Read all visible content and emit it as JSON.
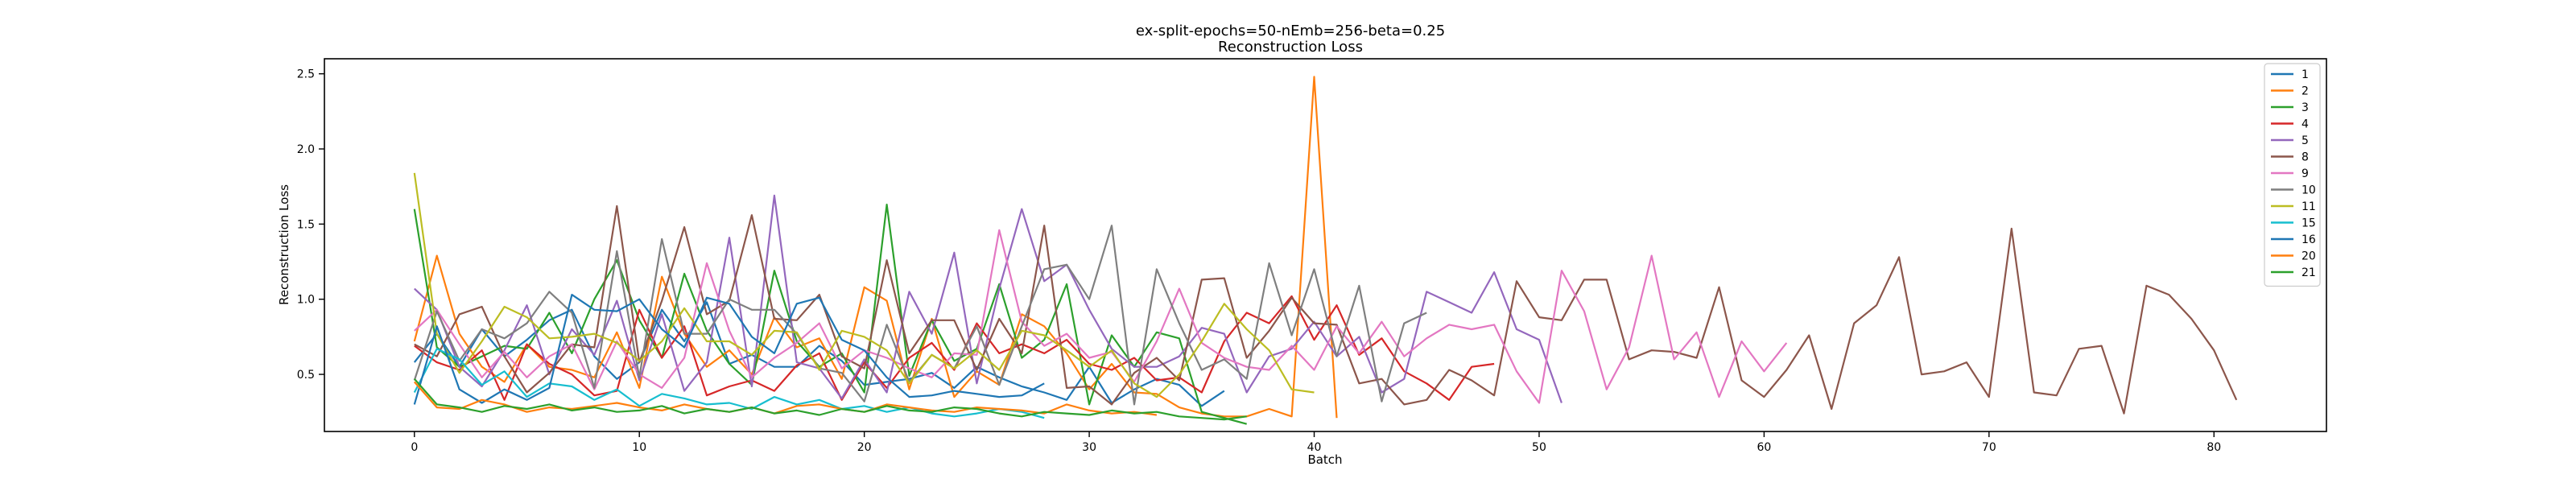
{
  "chart_data": {
    "type": "line",
    "title": "ex-split-epochs=50-nEmb=256-beta=0.25",
    "subtitle": "Reconstruction Loss",
    "xlabel": "Batch",
    "ylabel": "Reconstruction Loss",
    "xlim": [
      -4,
      85
    ],
    "ylim": [
      0.12,
      2.6
    ],
    "xticks": [
      "0",
      "10",
      "20",
      "30",
      "40",
      "50",
      "60",
      "70",
      "80"
    ],
    "yticks": [
      "0.5",
      "1.0",
      "1.5",
      "2.0",
      "2.5"
    ],
    "grid": false,
    "legend_position": "top-right",
    "series": [
      {
        "name": "1",
        "color": "#1f77b4",
        "values": [
          0.58,
          0.77,
          0.55,
          0.8,
          0.62,
          0.73,
          0.86,
          0.93,
          0.62,
          0.47,
          0.58,
          0.93,
          0.72,
          0.98,
          0.57,
          0.63,
          0.55,
          0.55,
          0.69,
          0.59,
          0.43,
          0.45,
          0.47,
          0.51,
          0.41,
          0.55,
          0.48,
          0.42,
          0.38,
          0.33,
          0.55,
          0.31,
          0.4,
          0.47,
          0.43,
          0.29,
          0.39
        ]
      },
      {
        "name": "2",
        "color": "#ff7f0e",
        "values": [
          0.72,
          1.29,
          0.77,
          0.55,
          0.45,
          0.7,
          0.55,
          0.53,
          0.48,
          0.78,
          0.41,
          1.15,
          0.77,
          0.55,
          0.66,
          0.5,
          0.88,
          0.68,
          0.74,
          0.47,
          1.08,
          0.99,
          0.4,
          0.87,
          0.35,
          0.52,
          0.43,
          0.9,
          0.82,
          0.64,
          0.4,
          0.57,
          0.38,
          0.37,
          0.28,
          0.24,
          0.22,
          0.22,
          0.27,
          0.22,
          2.48,
          0.21
        ]
      },
      {
        "name": "3",
        "color": "#2ca02c",
        "values": [
          1.6,
          0.68,
          0.55,
          0.62,
          0.69,
          0.67,
          0.91,
          0.64,
          1.0,
          1.26,
          0.86,
          0.61,
          1.17,
          0.79,
          0.57,
          0.43,
          1.19,
          0.72,
          0.55,
          0.64,
          0.38,
          1.63,
          0.49,
          0.86,
          0.59,
          0.67,
          1.1,
          0.61,
          0.73,
          1.1,
          0.3,
          0.76,
          0.55,
          0.78,
          0.74,
          0.25,
          0.21,
          0.17
        ]
      },
      {
        "name": "4",
        "color": "#d62728",
        "values": [
          0.69,
          0.58,
          0.53,
          0.66,
          0.33,
          0.7,
          0.57,
          0.5,
          0.36,
          0.39,
          0.93,
          0.61,
          0.82,
          0.36,
          0.42,
          0.46,
          0.39,
          0.56,
          0.64,
          0.33,
          0.58,
          0.41,
          0.61,
          0.71,
          0.53,
          0.84,
          0.64,
          0.7,
          0.64,
          0.73,
          0.57,
          0.53,
          0.61,
          0.46,
          0.48,
          0.38,
          0.72,
          0.91,
          0.84,
          1.02,
          0.73,
          0.96,
          0.63,
          0.74,
          0.52,
          0.44,
          0.33,
          0.55,
          0.57
        ]
      },
      {
        "name": "5",
        "color": "#9467bd",
        "values": [
          1.07,
          0.93,
          0.55,
          0.42,
          0.66,
          0.96,
          0.5,
          0.8,
          0.63,
          0.99,
          0.46,
          0.9,
          0.39,
          0.58,
          1.41,
          0.42,
          1.69,
          0.58,
          0.54,
          0.34,
          0.6,
          0.38,
          1.05,
          0.77,
          1.31,
          0.44,
          1.07,
          1.6,
          1.12,
          1.23,
          0.93,
          0.67,
          0.55,
          0.55,
          0.62,
          0.81,
          0.77,
          0.38,
          0.62,
          0.67,
          0.85,
          0.62,
          0.75,
          0.38,
          0.47,
          1.05,
          0.98,
          0.91,
          1.18,
          0.8,
          0.73,
          0.31
        ]
      },
      {
        "name": "8",
        "color": "#8c564b",
        "values": [
          0.7,
          0.62,
          0.9,
          0.95,
          0.62,
          0.38,
          0.51,
          0.7,
          0.68,
          1.62,
          0.58,
          0.99,
          1.48,
          0.9,
          0.99,
          1.56,
          0.87,
          0.86,
          1.03,
          0.62,
          0.54,
          1.26,
          0.64,
          0.86,
          0.86,
          0.53,
          0.87,
          0.64,
          1.49,
          0.41,
          0.42,
          0.3,
          0.51,
          0.61,
          0.46,
          1.13,
          1.14,
          0.61,
          0.79,
          1.01,
          0.84,
          0.83,
          0.44,
          0.47,
          0.3,
          0.33,
          0.53,
          0.46,
          0.36,
          1.12,
          0.88,
          0.86,
          1.13,
          1.13,
          0.6,
          0.66,
          0.65,
          0.61,
          1.08,
          0.46,
          0.35,
          0.53,
          0.76,
          0.27,
          0.84,
          0.96,
          1.28,
          0.5,
          0.52,
          0.58,
          0.35,
          1.47,
          0.38,
          0.36,
          0.67,
          0.69,
          0.24,
          1.09,
          1.03,
          0.87,
          0.66,
          0.33
        ]
      },
      {
        "name": "9",
        "color": "#e377c2",
        "values": [
          0.79,
          0.93,
          0.7,
          0.48,
          0.65,
          0.48,
          0.62,
          0.7,
          0.4,
          0.72,
          0.5,
          0.41,
          0.61,
          1.24,
          0.79,
          0.48,
          0.61,
          0.71,
          0.84,
          0.54,
          0.66,
          0.61,
          0.54,
          0.48,
          0.64,
          0.63,
          1.46,
          0.85,
          0.69,
          0.77,
          0.61,
          0.65,
          0.45,
          0.72,
          1.07,
          0.71,
          0.61,
          0.55,
          0.53,
          0.69,
          0.53,
          0.82,
          0.64,
          0.85,
          0.62,
          0.74,
          0.83,
          0.8,
          0.83,
          0.52,
          0.31,
          1.19,
          0.92,
          0.4,
          0.68,
          1.29,
          0.6,
          0.78,
          0.35,
          0.72,
          0.52,
          0.71
        ]
      },
      {
        "name": "10",
        "color": "#7f7f7f",
        "values": [
          0.46,
          0.92,
          0.59,
          0.8,
          0.74,
          0.84,
          1.05,
          0.91,
          0.41,
          1.32,
          0.48,
          1.4,
          0.77,
          0.77,
          1.0,
          0.93,
          0.93,
          0.77,
          0.54,
          0.51,
          0.32,
          0.83,
          0.45,
          0.63,
          0.54,
          0.82,
          0.43,
          0.82,
          1.2,
          1.23,
          1.0,
          1.49,
          0.3,
          1.2,
          0.84,
          0.53,
          0.6,
          0.47,
          1.24,
          0.76,
          1.2,
          0.62,
          1.09,
          0.32,
          0.84,
          0.91
        ]
      },
      {
        "name": "11",
        "color": "#bcbd22",
        "values": [
          1.84,
          0.77,
          0.51,
          0.72,
          0.95,
          0.88,
          0.74,
          0.75,
          0.77,
          0.71,
          0.59,
          0.72,
          0.94,
          0.72,
          0.72,
          0.63,
          0.79,
          0.78,
          0.53,
          0.79,
          0.75,
          0.66,
          0.44,
          0.63,
          0.54,
          0.66,
          0.53,
          0.79,
          0.76,
          0.66,
          0.55,
          0.66,
          0.44,
          0.35,
          0.5,
          0.72,
          0.97,
          0.8,
          0.66,
          0.4,
          0.38
        ]
      },
      {
        "name": "15",
        "color": "#17becf",
        "values": [
          0.38,
          0.67,
          0.6,
          0.43,
          0.52,
          0.35,
          0.44,
          0.42,
          0.33,
          0.4,
          0.29,
          0.37,
          0.34,
          0.3,
          0.31,
          0.27,
          0.35,
          0.3,
          0.33,
          0.27,
          0.29,
          0.25,
          0.28,
          0.24,
          0.22,
          0.24,
          0.27,
          0.25,
          0.21
        ]
      },
      {
        "name": "16",
        "color": "#1f77b4",
        "values": [
          0.3,
          0.82,
          0.4,
          0.31,
          0.4,
          0.33,
          0.41,
          1.03,
          0.93,
          0.92,
          1.0,
          0.8,
          0.68,
          1.01,
          0.97,
          0.75,
          0.64,
          0.97,
          1.01,
          0.73,
          0.66,
          0.48,
          0.35,
          0.36,
          0.39,
          0.37,
          0.35,
          0.36,
          0.44
        ]
      },
      {
        "name": "20",
        "color": "#ff7f0e",
        "values": [
          0.45,
          0.28,
          0.27,
          0.33,
          0.3,
          0.25,
          0.28,
          0.27,
          0.29,
          0.31,
          0.28,
          0.26,
          0.3,
          0.27,
          0.25,
          0.28,
          0.24,
          0.29,
          0.3,
          0.27,
          0.25,
          0.3,
          0.28,
          0.26,
          0.25,
          0.28,
          0.27,
          0.26,
          0.24,
          0.3,
          0.26,
          0.24,
          0.25,
          0.23
        ]
      },
      {
        "name": "21",
        "color": "#2ca02c",
        "values": [
          0.47,
          0.3,
          0.28,
          0.25,
          0.29,
          0.27,
          0.3,
          0.26,
          0.28,
          0.25,
          0.26,
          0.29,
          0.24,
          0.27,
          0.25,
          0.28,
          0.24,
          0.26,
          0.23,
          0.27,
          0.25,
          0.29,
          0.26,
          0.25,
          0.28,
          0.27,
          0.24,
          0.22,
          0.25,
          0.24,
          0.23,
          0.26,
          0.24,
          0.25,
          0.22,
          0.21,
          0.2,
          0.22
        ]
      }
    ]
  }
}
